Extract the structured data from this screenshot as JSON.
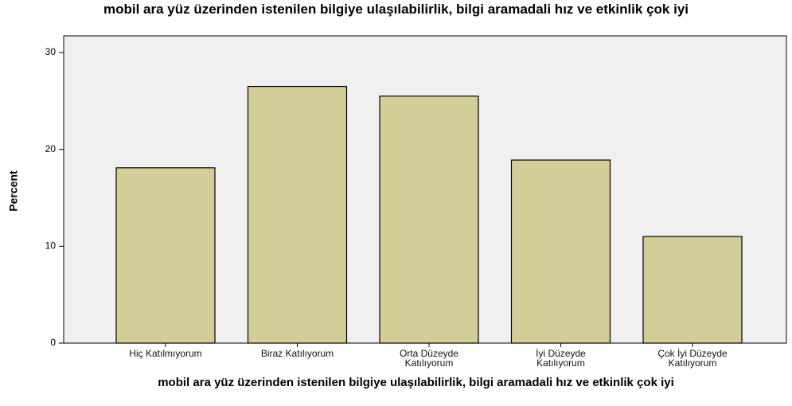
{
  "chart_data": {
    "type": "bar",
    "title": "mobil ara yüz üzerinden istenilen bilgiye ulaşılabilirlik, bilgi aramadali hız ve etkinlik çok iyi",
    "x_label": "mobil ara yüz üzerinden istenilen bilgiye ulaşılabilirlik, bilgi aramadali hız ve etkinlik çok iyi",
    "y_label": "Percent",
    "categories": [
      "Hiç Katılmıyorum",
      "Biraz Katılıyorum",
      "Orta Düzeyde Katılıyorum",
      "İyi Düzeyde Katılıyorum",
      "Çok İyi Düzeyde Katılıyorum"
    ],
    "values": [
      18.1,
      26.5,
      25.5,
      18.9,
      11.0
    ],
    "color": "#d3ce97",
    "ylim": [
      0,
      30
    ],
    "yticks": [
      0,
      10,
      20,
      30
    ],
    "grid": false
  }
}
